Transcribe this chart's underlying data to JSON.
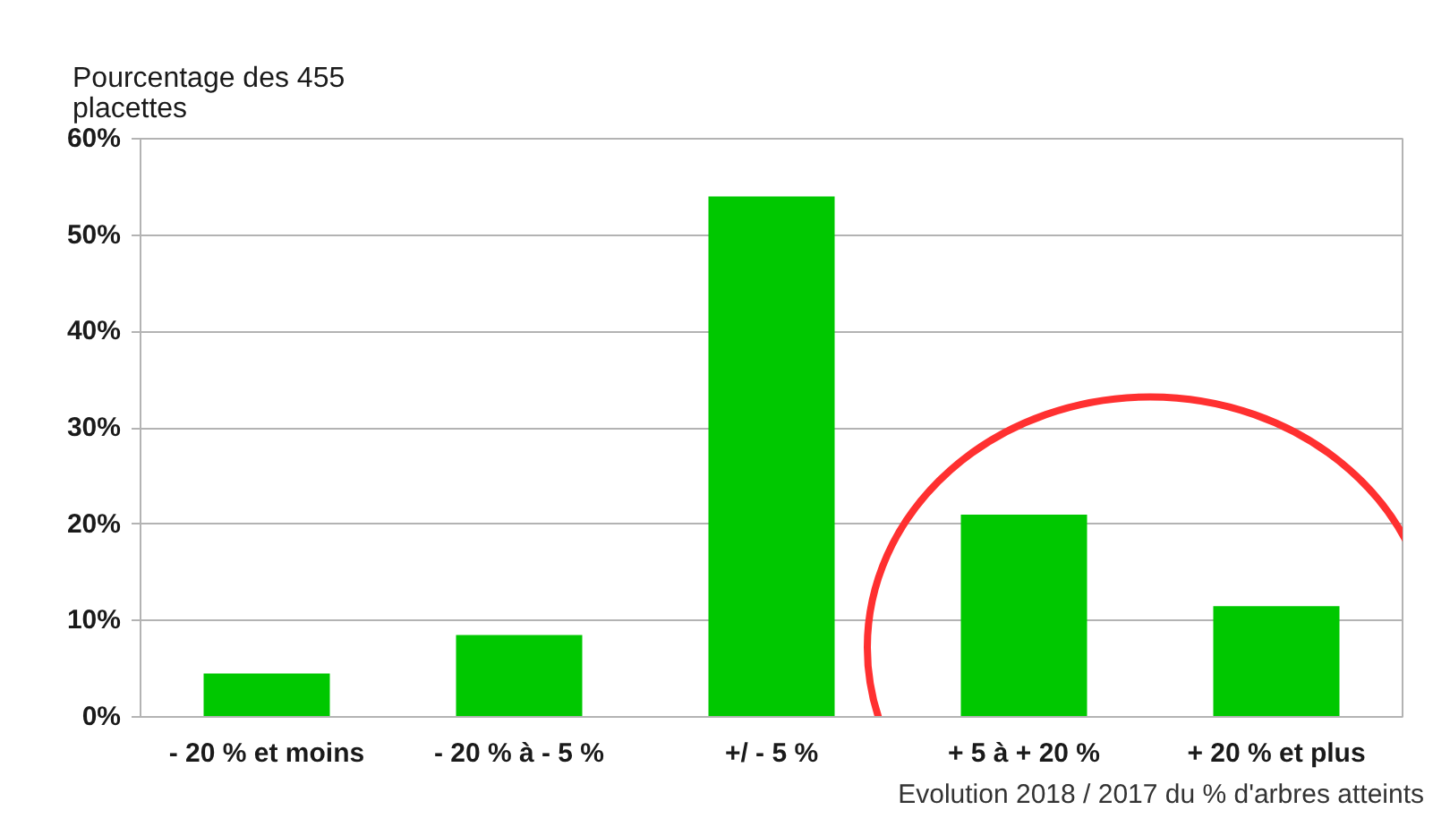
{
  "chart_data": {
    "type": "bar",
    "ylabel": "Pourcentage des 455 placettes",
    "xlabel": "Evolution 2018 / 2017 du % d'arbres atteints",
    "categories": [
      "- 20 % et moins",
      "- 20 % à - 5 %",
      "+/ - 5 %",
      "+ 5 à + 20 %",
      "+ 20 % et plus"
    ],
    "values": [
      4.5,
      8.5,
      54,
      21,
      11.5
    ],
    "color": "#00c800",
    "ylim": [
      0,
      60
    ],
    "yticks": [
      {
        "value": 0,
        "label": "0%"
      },
      {
        "value": 10,
        "label": "10%"
      },
      {
        "value": 20,
        "label": "20%"
      },
      {
        "value": 30,
        "label": "30%"
      },
      {
        "value": 40,
        "label": "40%"
      },
      {
        "value": 50,
        "label": "50%"
      },
      {
        "value": 60,
        "label": "60%"
      }
    ],
    "grid": "y"
  }
}
